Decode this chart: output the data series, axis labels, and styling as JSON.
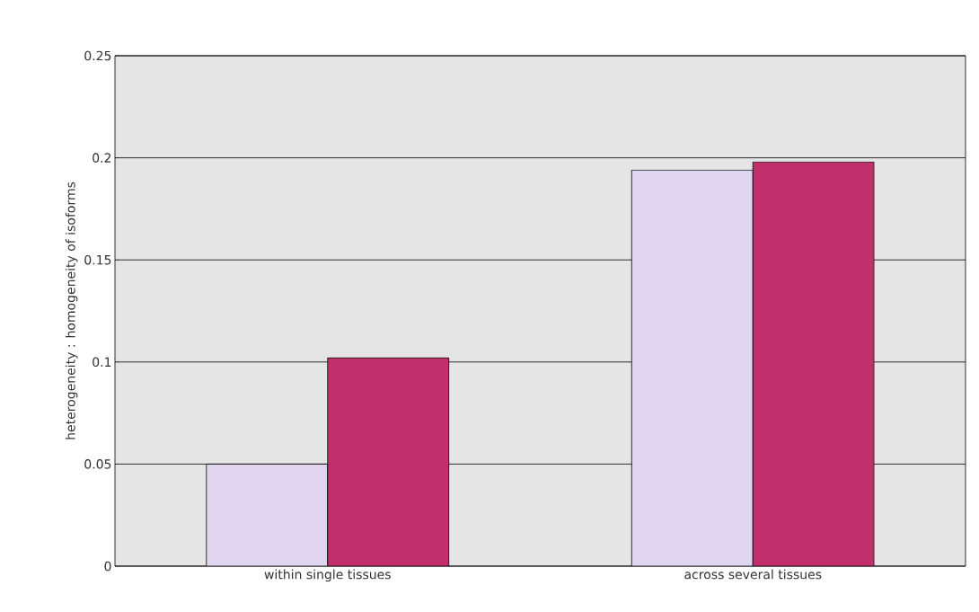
{
  "chart_data": {
    "type": "bar",
    "ylabel": "heterogeneity : homogeneity of isoforms",
    "categories": [
      "within single tissues",
      "across several tissues"
    ],
    "series": [
      {
        "color": "#e0d6f0",
        "values": [
          0.05,
          0.194
        ]
      },
      {
        "color": "#c2306c",
        "values": [
          0.102,
          0.198
        ]
      }
    ],
    "ylim": [
      0,
      0.25
    ],
    "yticks": [
      0,
      0.05,
      0.1,
      0.15,
      0.2,
      0.25
    ],
    "grid": "y"
  }
}
